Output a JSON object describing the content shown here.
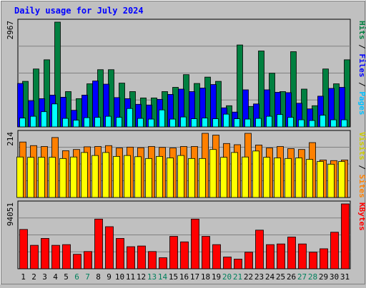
{
  "chart_data": {
    "title": "Daily usage for July 2024",
    "type": "bar",
    "x": [
      "1",
      "2",
      "3",
      "4",
      "5",
      "6",
      "7",
      "8",
      "9",
      "10",
      "11",
      "12",
      "13",
      "14",
      "15",
      "16",
      "17",
      "18",
      "19",
      "20",
      "21",
      "22",
      "23",
      "24",
      "25",
      "26",
      "27",
      "28",
      "29",
      "30",
      "31"
    ],
    "weekend_days": [
      "6",
      "7",
      "13",
      "14",
      "20",
      "21",
      "27",
      "28"
    ],
    "panels": [
      {
        "name": "hits-files-pages",
        "ymax": 2967,
        "ylabel_parts": [
          "Pages",
          "Files",
          "Hits"
        ],
        "series": [
          {
            "name": "Hits",
            "color": "#008040",
            "values": [
              1290,
              1640,
              1900,
              2967,
              1000,
              800,
              1220,
              1620,
              1620,
              1240,
              1000,
              820,
              820,
              1000,
              1120,
              1480,
              1230,
              1410,
              1290,
              600,
              2320,
              580,
              2150,
              1520,
              1000,
              2130,
              1070,
              600,
              1640,
              1220,
              1900
            ]
          },
          {
            "name": "Files",
            "color": "#0000ff",
            "values": [
              1230,
              740,
              800,
              900,
              840,
              470,
              900,
              1300,
              1210,
              830,
              800,
              640,
              620,
              780,
              920,
              1070,
              1000,
              1100,
              1200,
              540,
              420,
              1050,
              650,
              1050,
              980,
              970,
              670,
              510,
              870,
              1090,
              1120
            ]
          },
          {
            "name": "Pages",
            "color": "#00ffff",
            "values": [
              250,
              300,
              430,
              650,
              240,
              190,
              260,
              270,
              300,
              270,
              520,
              240,
              220,
              480,
              220,
              280,
              230,
              250,
              230,
              360,
              230,
              220,
              240,
              300,
              350,
              270,
              200,
              180,
              330,
              200,
              200
            ]
          }
        ]
      },
      {
        "name": "visits-sites",
        "ymax": 214,
        "ylabel_parts": [
          "Sites",
          "Visits"
        ],
        "series": [
          {
            "name": "Visits",
            "color": "#ffff00",
            "values": [
              135,
              134,
              134,
              134,
              130,
              135,
              150,
              140,
              150,
              137,
              140,
              136,
              130,
              137,
              132,
              140,
              130,
              130,
              160,
              134,
              150,
              135,
              155,
              134,
              132,
              130,
              132,
              127,
              120,
              111,
              120
            ]
          },
          {
            "name": "Sites",
            "color": "#ff8000",
            "values": [
              185,
              173,
              170,
              200,
              156,
              160,
              169,
              170,
              173,
              165,
              168,
              166,
              170,
              167,
              165,
              170,
              170,
              214,
              208,
              180,
              176,
              214,
              175,
              165,
              170,
              163,
              160,
              183,
              125,
              123,
              125
            ]
          }
        ]
      },
      {
        "name": "kbytes",
        "ymax": 94051,
        "ylabel_parts": [
          "KBytes"
        ],
        "series": [
          {
            "name": "KBytes",
            "color": "#ff0000",
            "values": [
              57000,
              34000,
              44000,
              34000,
              35000,
              21000,
              25000,
              72000,
              61000,
              44000,
              32000,
              33000,
              25000,
              16000,
              47000,
              39000,
              72000,
              47000,
              35000,
              17000,
              14000,
              24000,
              56000,
              35000,
              36000,
              46000,
              36000,
              24000,
              29000,
              53000,
              94051
            ]
          }
        ]
      }
    ]
  },
  "colors": {
    "background": "#c0c0c0",
    "plot_background": "#c0c0c0",
    "title": "#0000ff",
    "weekday_label": "#000000",
    "weekend_label": "#00805c"
  }
}
